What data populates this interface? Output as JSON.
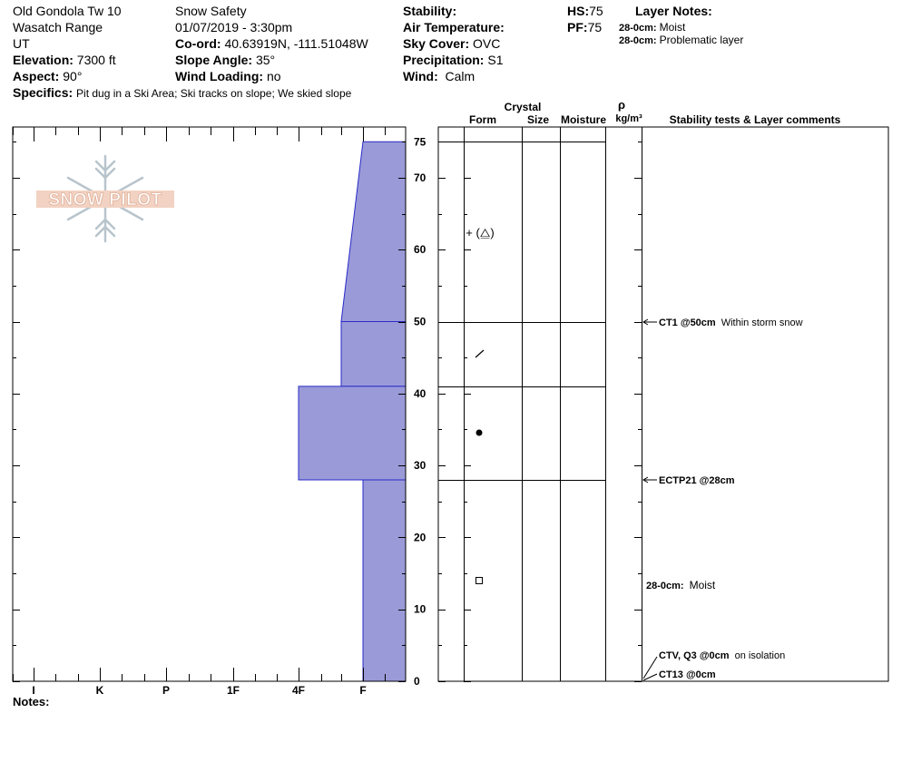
{
  "header": {
    "site_name": "Old Gondola Tw 10",
    "range": "Wasatch Range",
    "state": "UT",
    "elevation_label": "Elevation:",
    "elevation_value": "7300 ft",
    "aspect_label": "Aspect:",
    "aspect_value": "90°",
    "specifics_label": "Specifics:",
    "specifics_value": "Pit dug in a Ski Area; Ski tracks on slope; We skied slope",
    "organization": "Snow Safety",
    "datetime": "01/07/2019 - 3:30pm",
    "coord_label": "Co-ord:",
    "coord_value": "40.63919N, -111.51048W",
    "slope_label": "Slope Angle:",
    "slope_value": "35°",
    "wind_loading_label": "Wind Loading:",
    "wind_loading_value": "no",
    "stability_label": "Stability:",
    "air_temp_label": "Air Temperature:",
    "sky_label": "Sky Cover:",
    "sky_value": "OVC",
    "precip_label": "Precipitation:",
    "precip_value": "S1",
    "wind_label": "Wind:",
    "wind_value": "Calm",
    "hs_label": "HS:",
    "hs_value": "75",
    "pf_label": "PF:",
    "pf_value": "75",
    "layer_notes_title": "Layer Notes:",
    "layer_notes": [
      {
        "range": "28-0cm:",
        "text": "Moist"
      },
      {
        "range": "28-0cm:",
        "text": "Problematic layer"
      }
    ]
  },
  "logo": {
    "text": "SNOW PILOT"
  },
  "columns": {
    "crystal": "Crystal",
    "form": "Form",
    "size": "Size",
    "moisture": "Moisture",
    "rho": "ρ",
    "density_unit": "kg/m³",
    "comments": "Stability tests & Layer comments"
  },
  "hardness_axis": {
    "labels": [
      "I",
      "K",
      "P",
      "1F",
      "4F",
      "F"
    ]
  },
  "depth_axis": {
    "max": 75,
    "labels": [
      "75",
      "70",
      "60",
      "50",
      "40",
      "30",
      "20",
      "10",
      "0"
    ]
  },
  "chart_data": {
    "type": "hardness_profile",
    "depth_unit": "cm",
    "layers": [
      {
        "top": 75,
        "bottom": 50,
        "hardness_top": "F+",
        "hardness_bottom": "4F-",
        "crystal_form": "+ (⧋)"
      },
      {
        "top": 50,
        "bottom": 41,
        "hardness": "4F-",
        "crystal_form": "/"
      },
      {
        "top": 41,
        "bottom": 28,
        "hardness": "4F",
        "crystal_form": "●"
      },
      {
        "top": 28,
        "bottom": 0,
        "hardness": "F",
        "crystal_form": "□"
      }
    ],
    "layer_boundaries": [
      75,
      50,
      41,
      28
    ]
  },
  "stability_tests": [
    {
      "code": "CT1 @50cm",
      "comment": "Within storm snow"
    },
    {
      "code": "ECTP21 @28cm",
      "comment": ""
    },
    {
      "code": "28-0cm:",
      "comment": "Moist"
    },
    {
      "code": "CTV, Q3 @0cm",
      "comment": "on isolation"
    },
    {
      "code": "CT13 @0cm",
      "comment": ""
    }
  ],
  "crystal_symbols": [
    "+ (⧋)",
    "⁄",
    "●",
    "□"
  ],
  "notes_label": "Notes:",
  "colors": {
    "layer_fill": "#9a9ad8",
    "layer_stroke": "#2a2ac8"
  }
}
